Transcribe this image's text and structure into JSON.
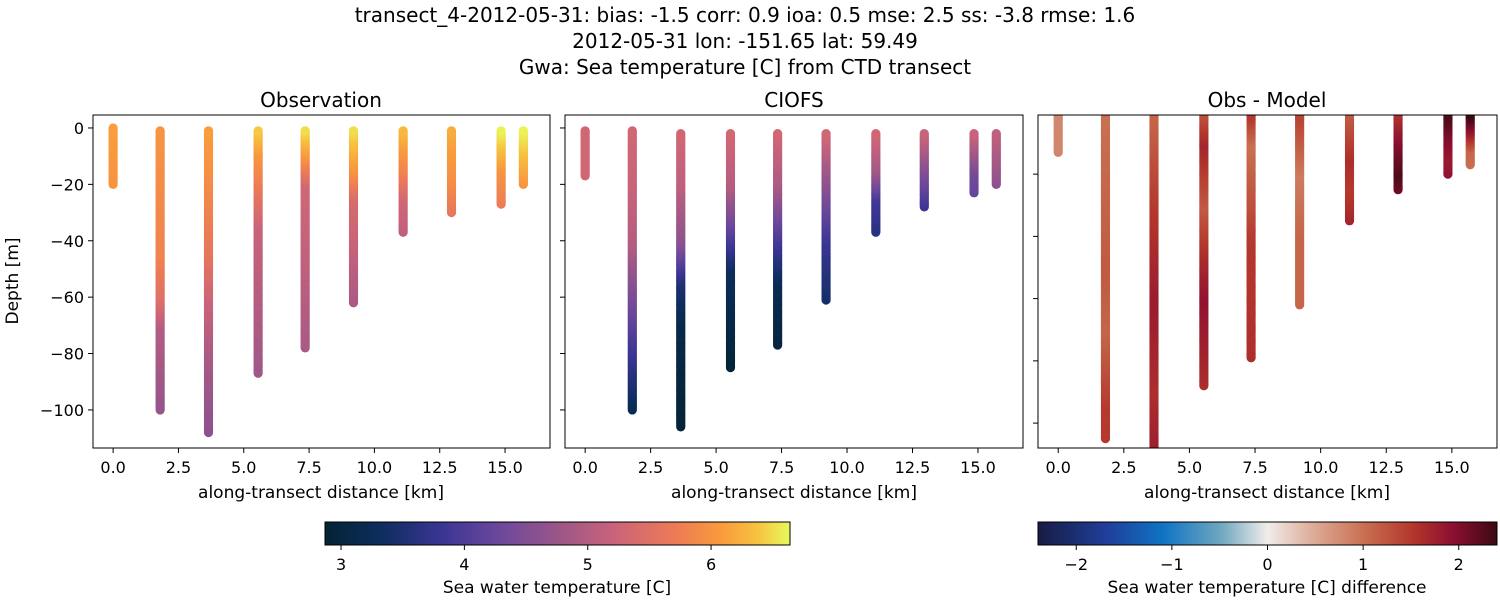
{
  "suptitle": [
    "transect_4-2012-05-31: bias: -1.5  corr: 0.9  ioa: 0.5  mse: 2.5  ss: -3.8  rmse: 1.6",
    "2012-05-31 lon: -151.65 lat: 59.49",
    "Gwa: Sea temperature [C] from CTD transect"
  ],
  "chart_data": [
    {
      "type": "scatter",
      "title": "Observation",
      "xlabel": "along-transect distance [km]",
      "ylabel": "Depth [m]",
      "xlim": [
        -0.77,
        16.72
      ],
      "ylim": [
        -113.5,
        4.6
      ],
      "xticks": [
        "0.0",
        "2.5",
        "5.0",
        "7.5",
        "10.0",
        "12.5",
        "15.0"
      ],
      "yticks": [
        "0",
        "−20",
        "−40",
        "−60",
        "−80",
        "−100"
      ],
      "colormap": "thermal",
      "casts": [
        {
          "x": 0.0,
          "profile": [
            [
              0,
              6.1
            ],
            [
              -20,
              6.0
            ]
          ]
        },
        {
          "x": 1.8,
          "profile": [
            [
              -1,
              6.0
            ],
            [
              -45,
              5.8
            ],
            [
              -60,
              5.5
            ],
            [
              -70,
              5.0
            ],
            [
              -100,
              4.7
            ]
          ]
        },
        {
          "x": 3.65,
          "profile": [
            [
              -1,
              6.1
            ],
            [
              -20,
              5.9
            ],
            [
              -45,
              5.6
            ],
            [
              -62,
              5.2
            ],
            [
              -80,
              4.9
            ],
            [
              -108,
              4.6
            ]
          ]
        },
        {
          "x": 5.55,
          "profile": [
            [
              -1,
              6.4
            ],
            [
              -10,
              6.0
            ],
            [
              -20,
              5.7
            ],
            [
              -35,
              5.2
            ],
            [
              -87,
              4.8
            ]
          ]
        },
        {
          "x": 7.35,
          "profile": [
            [
              -1,
              6.5
            ],
            [
              -10,
              6.0
            ],
            [
              -20,
              5.3
            ],
            [
              -78,
              4.9
            ]
          ]
        },
        {
          "x": 9.2,
          "profile": [
            [
              -1,
              6.5
            ],
            [
              -15,
              6.0
            ],
            [
              -25,
              5.4
            ],
            [
              -62,
              4.9
            ]
          ]
        },
        {
          "x": 11.1,
          "profile": [
            [
              -1,
              6.3
            ],
            [
              -15,
              5.8
            ],
            [
              -25,
              5.3
            ],
            [
              -37,
              5.1
            ]
          ]
        },
        {
          "x": 12.95,
          "profile": [
            [
              -1,
              6.2
            ],
            [
              -20,
              5.9
            ],
            [
              -30,
              5.6
            ]
          ]
        },
        {
          "x": 14.85,
          "profile": [
            [
              -1,
              6.6
            ],
            [
              -15,
              6.0
            ],
            [
              -27,
              5.7
            ]
          ]
        },
        {
          "x": 15.7,
          "profile": [
            [
              -1,
              6.6
            ],
            [
              -20,
              6.0
            ]
          ]
        }
      ]
    },
    {
      "type": "scatter",
      "title": "CIOFS",
      "xlabel": "along-transect distance [km]",
      "xlim": [
        -0.77,
        16.72
      ],
      "ylim": [
        -113.5,
        4.6
      ],
      "xticks": [
        "0.0",
        "2.5",
        "5.0",
        "7.5",
        "10.0",
        "12.5",
        "15.0"
      ],
      "colormap": "thermal",
      "casts": [
        {
          "x": 0.0,
          "profile": [
            [
              -1,
              5.3
            ],
            [
              -17,
              5.3
            ]
          ]
        },
        {
          "x": 1.8,
          "profile": [
            [
              -1,
              5.3
            ],
            [
              -20,
              5.2
            ],
            [
              -40,
              5.0
            ],
            [
              -60,
              4.4
            ],
            [
              -80,
              3.8
            ],
            [
              -100,
              3.2
            ]
          ]
        },
        {
          "x": 3.65,
          "profile": [
            [
              -2,
              5.3
            ],
            [
              -20,
              5.1
            ],
            [
              -40,
              4.6
            ],
            [
              -55,
              3.5
            ],
            [
              -70,
              3.1
            ],
            [
              -106,
              2.9
            ]
          ]
        },
        {
          "x": 5.55,
          "profile": [
            [
              -2,
              5.3
            ],
            [
              -20,
              5.0
            ],
            [
              -35,
              4.2
            ],
            [
              -50,
              3.3
            ],
            [
              -85,
              2.9
            ]
          ]
        },
        {
          "x": 7.35,
          "profile": [
            [
              -2,
              5.3
            ],
            [
              -20,
              4.9
            ],
            [
              -40,
              3.9
            ],
            [
              -55,
              3.2
            ],
            [
              -77,
              3.0
            ]
          ]
        },
        {
          "x": 9.2,
          "profile": [
            [
              -2,
              5.3
            ],
            [
              -20,
              4.6
            ],
            [
              -40,
              3.8
            ],
            [
              -61,
              3.4
            ]
          ]
        },
        {
          "x": 11.1,
          "profile": [
            [
              -2,
              5.3
            ],
            [
              -15,
              4.8
            ],
            [
              -25,
              3.9
            ],
            [
              -37,
              3.6
            ]
          ]
        },
        {
          "x": 12.95,
          "profile": [
            [
              -2,
              5.2
            ],
            [
              -15,
              4.5
            ],
            [
              -28,
              3.8
            ]
          ]
        },
        {
          "x": 14.85,
          "profile": [
            [
              -2,
              5.2
            ],
            [
              -15,
              4.4
            ],
            [
              -23,
              4.2
            ]
          ]
        },
        {
          "x": 15.7,
          "profile": [
            [
              -2,
              5.1
            ],
            [
              -20,
              4.6
            ]
          ]
        }
      ]
    },
    {
      "type": "scatter",
      "title": "Obs - Model",
      "xlabel": "along-transect distance [km]",
      "xlim": [
        -0.77,
        16.72
      ],
      "ylim": [
        -108,
        -1
      ],
      "xticks": [
        "0.0",
        "2.5",
        "5.0",
        "7.5",
        "10.0",
        "12.5",
        "15.0"
      ],
      "yticks_unlabeled": [
        -20,
        -40,
        -60,
        -80,
        -100
      ],
      "colormap": "balance",
      "casts": [
        {
          "x": 0.0,
          "profile": [
            [
              -1,
              0.8
            ],
            [
              -13,
              0.8
            ]
          ]
        },
        {
          "x": 1.8,
          "profile": [
            [
              -1,
              1.0
            ],
            [
              -50,
              1.2
            ],
            [
              -70,
              1.1
            ],
            [
              -95,
              1.5
            ],
            [
              -105,
              1.5
            ]
          ]
        },
        {
          "x": 3.65,
          "profile": [
            [
              -1,
              1.1
            ],
            [
              -30,
              1.5
            ],
            [
              -60,
              1.8
            ],
            [
              -90,
              1.6
            ],
            [
              -111,
              1.8
            ]
          ]
        },
        {
          "x": 5.55,
          "profile": [
            [
              -1,
              1.3
            ],
            [
              -10,
              1.7
            ],
            [
              -30,
              1.2
            ],
            [
              -45,
              1.6
            ],
            [
              -60,
              1.9
            ],
            [
              -88,
              1.6
            ]
          ]
        },
        {
          "x": 7.35,
          "profile": [
            [
              -1,
              1.5
            ],
            [
              -10,
              1.0
            ],
            [
              -30,
              1.3
            ],
            [
              -40,
              1.5
            ],
            [
              -79,
              1.6
            ]
          ]
        },
        {
          "x": 9.2,
          "profile": [
            [
              -1,
              1.4
            ],
            [
              -20,
              0.9
            ],
            [
              -40,
              1.1
            ],
            [
              -62,
              1.1
            ]
          ]
        },
        {
          "x": 11.1,
          "profile": [
            [
              -1,
              1.2
            ],
            [
              -15,
              1.6
            ],
            [
              -25,
              1.5
            ],
            [
              -35,
              1.7
            ]
          ]
        },
        {
          "x": 12.95,
          "profile": [
            [
              -1,
              1.6
            ],
            [
              -10,
              2.0
            ],
            [
              -20,
              2.3
            ],
            [
              -25,
              2.1
            ]
          ]
        },
        {
          "x": 14.85,
          "profile": [
            [
              -1,
              2.3
            ],
            [
              -8,
              2.0
            ],
            [
              -15,
              1.8
            ],
            [
              -20,
              1.9
            ]
          ]
        },
        {
          "x": 15.7,
          "profile": [
            [
              -1,
              2.4
            ],
            [
              -8,
              1.6
            ],
            [
              -12,
              1.1
            ],
            [
              -17,
              1.0
            ]
          ]
        }
      ]
    }
  ],
  "colorbars": [
    {
      "label": "Sea water temperature [C]",
      "range": [
        2.87,
        6.64
      ],
      "ticks": [
        "3",
        "4",
        "5",
        "6"
      ],
      "colormap": "thermal"
    },
    {
      "label": "Sea water temperature [C] difference",
      "range": [
        -2.4,
        2.4
      ],
      "ticks": [
        "−2",
        "−1",
        "0",
        "1",
        "2"
      ],
      "colormap": "balance"
    }
  ]
}
